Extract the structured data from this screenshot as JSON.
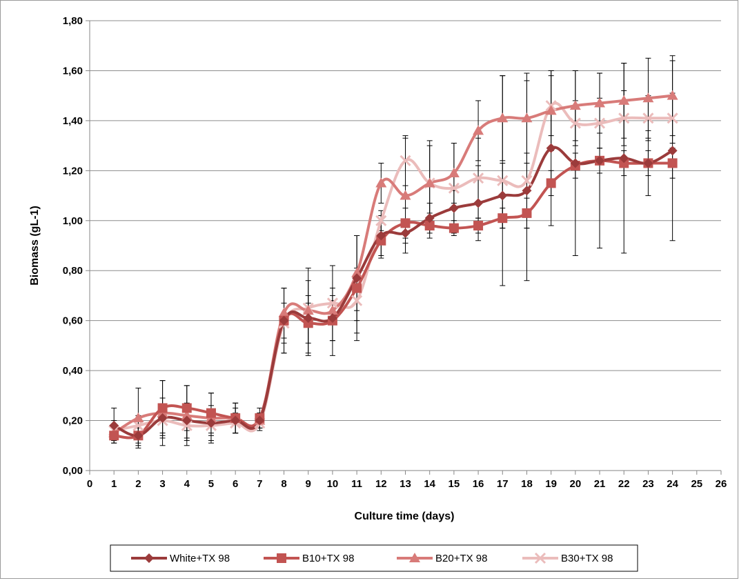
{
  "chart_data": {
    "type": "line",
    "xlabel": "Culture time (days)",
    "ylabel": "Biomass (gL-1)",
    "xlim": [
      0,
      26
    ],
    "ylim": [
      0,
      1.8
    ],
    "x_ticks": [
      "0",
      "1",
      "2",
      "3",
      "4",
      "5",
      "6",
      "7",
      "8",
      "9",
      "10",
      "11",
      "12",
      "13",
      "14",
      "15",
      "16",
      "17",
      "18",
      "19",
      "20",
      "21",
      "22",
      "23",
      "24",
      "25",
      "26"
    ],
    "y_ticks": [
      "0,00",
      "0,20",
      "0,40",
      "0,60",
      "0,80",
      "1,00",
      "1,20",
      "1,40",
      "1,60",
      "1,80"
    ],
    "grid": "horizontal",
    "legend_position": "bottom",
    "x": [
      1,
      2,
      3,
      4,
      5,
      6,
      7,
      8,
      9,
      10,
      11,
      12,
      13,
      14,
      15,
      16,
      17,
      18,
      19,
      20,
      21,
      22,
      23,
      24
    ],
    "series": [
      {
        "name": "White+TX 98",
        "color": "#9b3b3b",
        "marker": "diamond",
        "values": [
          0.18,
          0.14,
          0.21,
          0.2,
          0.19,
          0.2,
          0.2,
          0.6,
          0.61,
          0.61,
          0.77,
          0.94,
          0.95,
          1.01,
          1.05,
          1.07,
          1.1,
          1.12,
          1.29,
          1.23,
          1.24,
          1.25,
          1.23,
          1.28
        ],
        "errors": [
          0.07,
          0.03,
          0.08,
          0.07,
          0.07,
          0.05,
          0.03,
          0.13,
          0.15,
          0.09,
          0.17,
          0.08,
          0.04,
          0.06,
          0.07,
          0.15,
          0.13,
          0.15,
          0.31,
          0.37,
          0.35,
          0.38,
          0.13,
          0.36
        ]
      },
      {
        "name": "B10+TX 98",
        "color": "#c25452",
        "marker": "square",
        "values": [
          0.14,
          0.14,
          0.25,
          0.25,
          0.23,
          0.21,
          0.21,
          0.6,
          0.59,
          0.6,
          0.73,
          0.92,
          0.99,
          0.98,
          0.97,
          0.98,
          1.01,
          1.03,
          1.15,
          1.22,
          1.24,
          1.23,
          1.23,
          1.23
        ],
        "errors": [
          0.03,
          0.04,
          0.11,
          0.09,
          0.08,
          0.06,
          0.04,
          0.13,
          0.08,
          0.08,
          0.21,
          0.07,
          0.06,
          0.05,
          0.03,
          0.03,
          0.04,
          0.06,
          0.05,
          0.05,
          0.05,
          0.05,
          0.05,
          0.06
        ]
      },
      {
        "name": "B20+TX 98",
        "color": "#d87b79",
        "marker": "triangle",
        "values": [
          0.15,
          0.21,
          0.23,
          0.22,
          0.21,
          0.21,
          0.2,
          0.63,
          0.64,
          0.64,
          0.79,
          1.15,
          1.1,
          1.15,
          1.19,
          1.36,
          1.41,
          1.41,
          1.44,
          1.46,
          1.47,
          1.48,
          1.49,
          1.5
        ],
        "errors": [
          0.03,
          0.12,
          0.13,
          0.12,
          0.1,
          0.06,
          0.03,
          0.1,
          0.17,
          0.18,
          0.15,
          0.08,
          0.23,
          0.17,
          0.12,
          0.12,
          0.17,
          0.18,
          0.16,
          0.14,
          0.12,
          0.15,
          0.16,
          0.16
        ]
      },
      {
        "name": "B30+TX 98",
        "color": "#ebbcbb",
        "marker": "x",
        "values": [
          0.16,
          0.18,
          0.2,
          0.18,
          0.18,
          0.19,
          0.19,
          0.59,
          0.65,
          0.67,
          0.68,
          1.0,
          1.24,
          1.15,
          1.13,
          1.17,
          1.16,
          1.16,
          1.46,
          1.39,
          1.39,
          1.41,
          1.41,
          1.41
        ],
        "errors": [
          0.04,
          0.04,
          0.05,
          0.06,
          0.04,
          0.04,
          0.03,
          0.08,
          0.05,
          0.06,
          0.13,
          0.04,
          0.1,
          0.15,
          0.18,
          0.16,
          0.42,
          0.4,
          0.12,
          0.09,
          0.1,
          0.11,
          0.09,
          0.1
        ]
      }
    ]
  }
}
